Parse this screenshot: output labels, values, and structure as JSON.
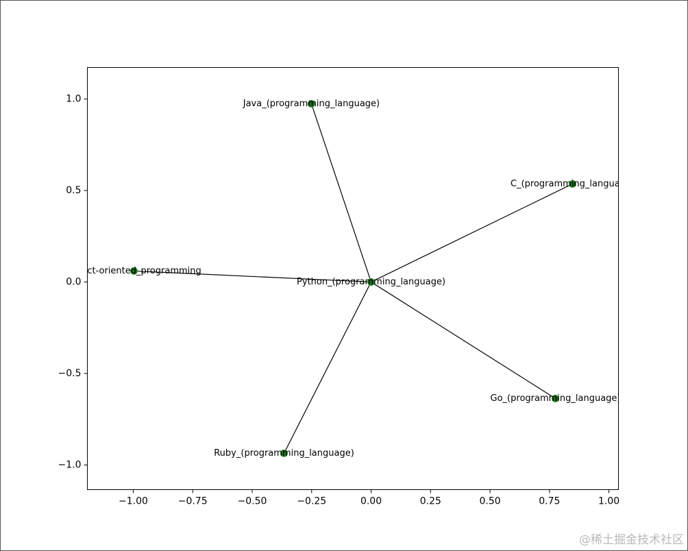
{
  "chart_data": {
    "type": "network",
    "nodes": [
      {
        "label": "Python_(programming_language)",
        "x": 0.0,
        "y": 0.0
      },
      {
        "label": "Java_(programming_language)",
        "x": -0.251,
        "y": 0.974
      },
      {
        "label": "C_(programming_language)",
        "x": 0.847,
        "y": 0.536
      },
      {
        "label": "Object-oriented_programming",
        "x": -0.997,
        "y": 0.06
      },
      {
        "label": "Go_(programming_language)",
        "x": 0.775,
        "y": -0.637
      },
      {
        "label": "Ruby_(programming_language)",
        "x": -0.366,
        "y": -0.936
      }
    ],
    "edges": [
      [
        0,
        1
      ],
      [
        0,
        2
      ],
      [
        0,
        3
      ],
      [
        0,
        4
      ],
      [
        0,
        5
      ]
    ],
    "node_color": "#1e6b1e",
    "edge_color": "#000000",
    "xlim": [
      -1.193,
      1.04
    ],
    "ylim": [
      -1.135,
      1.172
    ],
    "xticks": [
      {
        "value": -1,
        "label": "−1.00"
      },
      {
        "value": -0.75,
        "label": "−0.75"
      },
      {
        "value": -0.5,
        "label": "−0.50"
      },
      {
        "value": -0.25,
        "label": "−0.25"
      },
      {
        "value": 0,
        "label": "0.00"
      },
      {
        "value": 0.25,
        "label": "0.25"
      },
      {
        "value": 0.5,
        "label": "0.50"
      },
      {
        "value": 0.75,
        "label": "0.75"
      },
      {
        "value": 1,
        "label": "1.00"
      }
    ],
    "yticks": [
      {
        "value": -1,
        "label": "−1.0"
      },
      {
        "value": -0.5,
        "label": "−0.5"
      },
      {
        "value": 0,
        "label": "0.0"
      },
      {
        "value": 0.5,
        "label": "0.5"
      },
      {
        "value": 1,
        "label": "1.0"
      }
    ],
    "watermark": "@稀土掘金技术社区"
  }
}
